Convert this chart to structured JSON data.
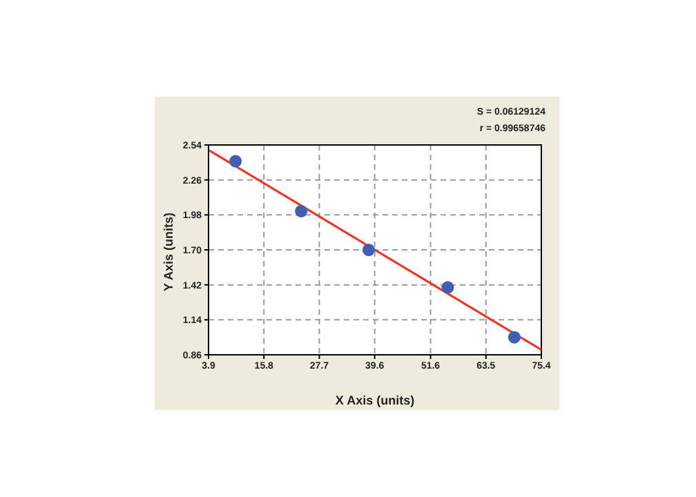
{
  "chart_data": {
    "type": "scatter",
    "xlabel": "X Axis (units)",
    "ylabel": "Y Axis (units)",
    "annotations": [
      "S = 0.06129124",
      "r = 0.99658746"
    ],
    "series": [
      {
        "color": "#3f5fb5",
        "x": [
          9.7,
          23.8,
          38.3,
          55.3,
          69.6
        ],
        "values": [
          2.41,
          2.01,
          1.7,
          1.4,
          1.0
        ]
      },
      {
        "type": "line",
        "marker": "none",
        "color": "#ff2a1a",
        "x": [
          3.9,
          75.4
        ],
        "values": [
          2.5,
          0.9
        ]
      }
    ],
    "xlim": [
      3.9,
      75.4
    ],
    "xticks": [
      3.9,
      15.8,
      27.7,
      39.6,
      51.6,
      63.5,
      75.4
    ],
    "ylim": [
      0.86,
      2.54
    ],
    "yticks": [
      0.86,
      1.14,
      1.42,
      {
        "value": 1.7,
        "label": "1.70"
      },
      1.98,
      2.26,
      2.54
    ],
    "grid": true,
    "marker": "circle",
    "line_style": "solid"
  }
}
